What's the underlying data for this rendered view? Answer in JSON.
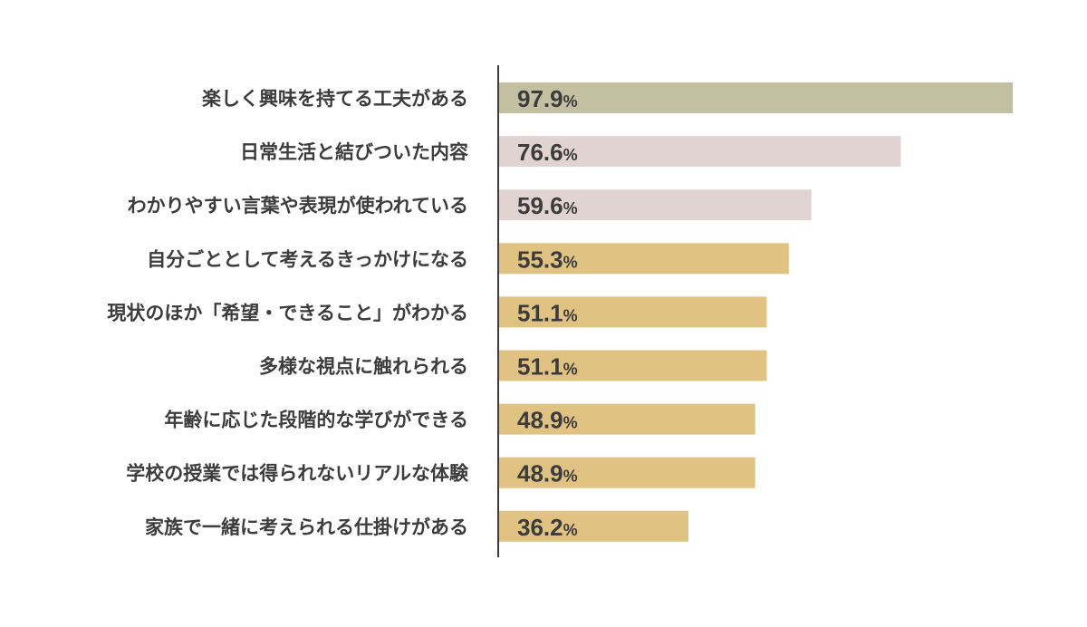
{
  "chart_data": {
    "type": "bar",
    "orientation": "horizontal",
    "categories": [
      "楽しく興味を持てる工夫がある",
      "日常生活と結びついた内容",
      "わかりやすい言葉や表現が使われている",
      "自分ごととして考えるきっかけになる",
      "現状のほか「希望・できること」がわかる",
      "多様な視点に触れられる",
      "年齢に応じた段階的な学びができる",
      "学校の授業では得られないリアルな体験",
      "家族で一緒に考えられる仕掛けがある"
    ],
    "values": [
      97.9,
      76.6,
      59.6,
      55.3,
      51.1,
      51.1,
      48.9,
      48.9,
      36.2
    ],
    "value_suffix": "%",
    "colors": [
      "#c2c0a0",
      "#e2d3d3",
      "#e2d3d3",
      "#e0c283",
      "#e0c283",
      "#e0c283",
      "#e0c283",
      "#e0c283",
      "#e0c283"
    ],
    "xlim": [
      0,
      100
    ],
    "grid": false,
    "title": "",
    "xlabel": "",
    "ylabel": ""
  }
}
